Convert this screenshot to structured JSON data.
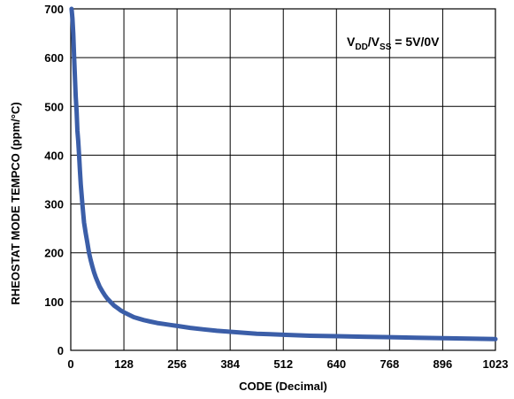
{
  "chart_data": {
    "type": "line",
    "title": "",
    "xlabel": "CODE (Decimal)",
    "ylabel": "RHEOSTAT MODE TEMPCO (ppm/°C)",
    "xlim": [
      0,
      1023
    ],
    "ylim": [
      0,
      700
    ],
    "xticks": [
      0,
      128,
      256,
      384,
      512,
      640,
      768,
      896,
      1023
    ],
    "yticks": [
      0,
      100,
      200,
      300,
      400,
      500,
      600,
      700
    ],
    "grid": true,
    "line_color": "#3b5ea8",
    "annotation": {
      "v": "V",
      "dd": "DD",
      "slash": "/V",
      "ss": "SS",
      "rest": " = 5V/0V"
    },
    "series": [
      {
        "x": [
          2,
          4,
          6,
          8,
          10,
          12,
          14,
          16,
          18,
          20,
          22,
          24,
          26,
          28,
          30,
          32,
          36,
          40,
          44,
          48,
          52,
          56,
          60,
          64,
          70,
          76,
          82,
          88,
          96,
          104,
          112,
          120,
          128,
          140,
          152,
          164,
          176,
          192,
          208,
          224,
          240,
          256,
          288,
          320,
          352,
          384,
          416,
          448,
          480,
          512,
          576,
          640,
          704,
          768,
          832,
          896,
          960,
          1023
        ],
        "y": [
          700,
          680,
          650,
          600,
          560,
          520,
          490,
          450,
          430,
          400,
          370,
          340,
          320,
          300,
          280,
          262,
          240,
          220,
          200,
          185,
          172,
          160,
          150,
          142,
          130,
          121,
          113,
          106,
          99,
          92,
          87,
          82,
          78,
          73,
          68,
          65,
          62,
          59,
          56,
          54,
          52,
          50,
          46,
          43,
          40,
          38,
          36,
          34,
          33,
          32,
          30,
          29,
          28,
          27,
          26,
          25,
          24,
          23
        ]
      }
    ]
  }
}
